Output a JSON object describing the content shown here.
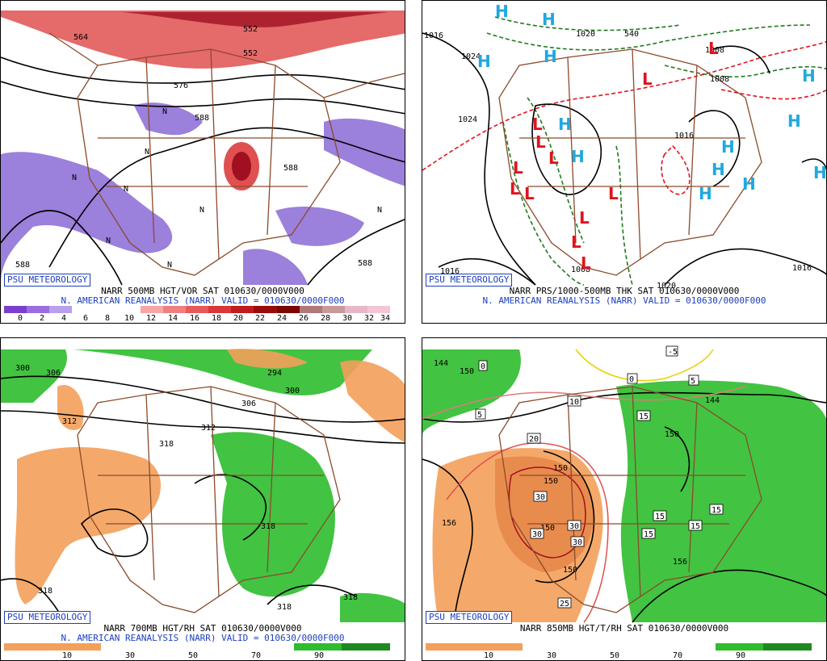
{
  "badge_text": "PSU METEOROLOGY",
  "colors": {
    "purple": "#8a6ad6",
    "red": "#e05050",
    "darkred": "#a01020",
    "green": "#2ebd2e",
    "orange": "#f3a05a",
    "state": "#8b4a2b",
    "blue": "#1c3fbf"
  },
  "panels": [
    {
      "title": "NARR 500MB HGT/VOR SAT 010630/0000V000",
      "subtitle": "N. AMERICAN REANALYSIS (NARR) VALID = 010630/0000F000",
      "scale_ticks": [
        "0",
        "2",
        "4",
        "6",
        "8",
        "10",
        "12",
        "14",
        "16",
        "18",
        "20",
        "22",
        "24",
        "26",
        "28",
        "30",
        "32",
        "34"
      ],
      "contour_labels": [
        "588",
        "588",
        "588",
        "576",
        "564",
        "552",
        "588",
        "588"
      ],
      "vort_markers": [
        "N",
        "N",
        "N",
        "N",
        "N",
        "N",
        "N",
        "N"
      ]
    },
    {
      "title": "NARR PRS/1000-500MB THK SAT 010630/0000V000",
      "subtitle": "N. AMERICAN REANALYSIS (NARR) VALID = 010630/0000F000",
      "contour_labels": [
        "1016",
        "1024",
        "1024",
        "1020",
        "1016",
        "1008",
        "1008",
        "1008",
        "1008",
        "1016",
        "1016",
        "1016",
        "540",
        "1020"
      ],
      "highs": [
        "H",
        "H",
        "H",
        "H",
        "H",
        "H",
        "H",
        "H",
        "H",
        "H",
        "H",
        "H",
        "H"
      ],
      "lows": [
        "L",
        "L",
        "L",
        "L",
        "L",
        "L",
        "L",
        "L",
        "L",
        "L",
        "L",
        "L"
      ]
    },
    {
      "title": "NARR 700MB HGT/RH SAT 010630/0000V000",
      "subtitle": "N. AMERICAN REANALYSIS (NARR) VALID = 010630/0000F000",
      "scale_ticks": [
        "10",
        "30",
        "50",
        "70",
        "90"
      ],
      "contour_labels": [
        "300",
        "306",
        "312",
        "312",
        "318",
        "306",
        "300",
        "294",
        "318",
        "318",
        "318",
        "318"
      ]
    },
    {
      "title": "NARR 850MB HGT/T/RH SAT 010630/0000V000",
      "subtitle": "",
      "scale_ticks": [
        "10",
        "30",
        "50",
        "70",
        "90"
      ],
      "contour_labels": [
        "144",
        "150",
        "156",
        "150",
        "150",
        "150",
        "144",
        "150",
        "156",
        "150"
      ],
      "temp_labels": [
        "0",
        "0",
        "10",
        "20",
        "5",
        "15",
        "15",
        "15",
        "15",
        "15",
        "25",
        "30",
        "30",
        "30",
        "30",
        "-5",
        "5"
      ]
    }
  ]
}
